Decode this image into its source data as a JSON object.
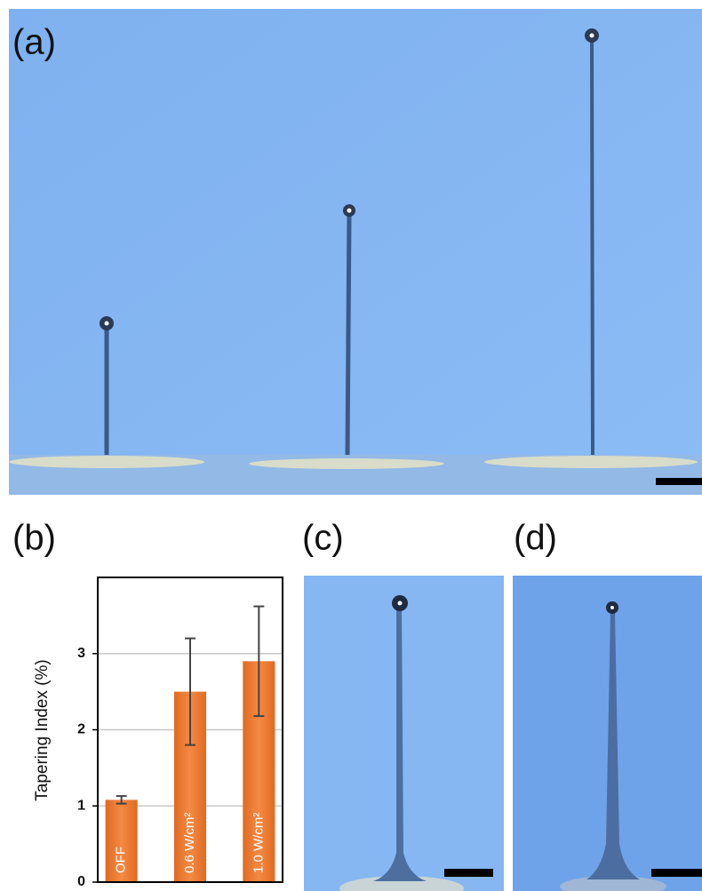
{
  "panel_labels": [
    "(a)",
    "(b)",
    "(c)",
    "(d)"
  ],
  "chart_data": {
    "type": "bar",
    "y_label": "Tapering Index (%)",
    "categories": [
      "OFF",
      "0.6 W/cm²",
      "1.0 W/cm²"
    ],
    "values": [
      1.08,
      2.5,
      2.9
    ],
    "errors": [
      0.05,
      0.7,
      0.72
    ],
    "color": "#ed7d31",
    "ylim": [
      0,
      4
    ],
    "yticks": [
      0,
      1,
      2,
      3
    ],
    "grid": true
  }
}
